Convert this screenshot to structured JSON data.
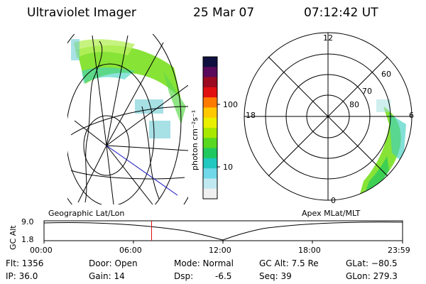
{
  "header": {
    "instrument": "Ultraviolet Imager",
    "date": "25 Mar 07",
    "time": "07:12:42 UT"
  },
  "colorbar": {
    "title": "photon cm⁻²s⁻¹",
    "ticks": [
      "100",
      "10"
    ],
    "colors": [
      "#101040",
      "#5a0a5a",
      "#9a0a20",
      "#e01010",
      "#ff7a00",
      "#ffc800",
      "#e8f000",
      "#a8e800",
      "#58d820",
      "#20c860",
      "#20c8c0",
      "#70d8e8",
      "#c0e8f0",
      "#f0f0f0"
    ]
  },
  "polar": {
    "labels": [
      "12",
      "60",
      "70",
      "80",
      "18",
      "6",
      "0"
    ]
  },
  "maps": {
    "left_label": "Geographic Lat/Lon",
    "right_label": "Apex MLat/MLT"
  },
  "timeline": {
    "ylabel": "GC Alt",
    "ymax": "9.0",
    "ymin": "1.8",
    "xticks": [
      "00:00",
      "06:00",
      "12:00",
      "18:00",
      "23:59"
    ],
    "marker_time_fraction": 0.3
  },
  "info": {
    "flt": "Flt: 1356",
    "ip": "IP: 36.0",
    "door": "Door: Open",
    "gain": "Gain: 14",
    "mode": "Mode: Normal",
    "dsp_label": "Dsp:",
    "dsp_value": "-6.5",
    "gcalt": "GC Alt: 7.5 Re",
    "seq": "Seq: 39",
    "glat": "GLat: −80.5",
    "glon": "GLon: 279.3"
  },
  "accent_colors": {
    "aurora_green": "#7ae020",
    "aurora_cyan": "#40d0c0",
    "marker": "#e01010",
    "meridian": "#1010c0"
  }
}
